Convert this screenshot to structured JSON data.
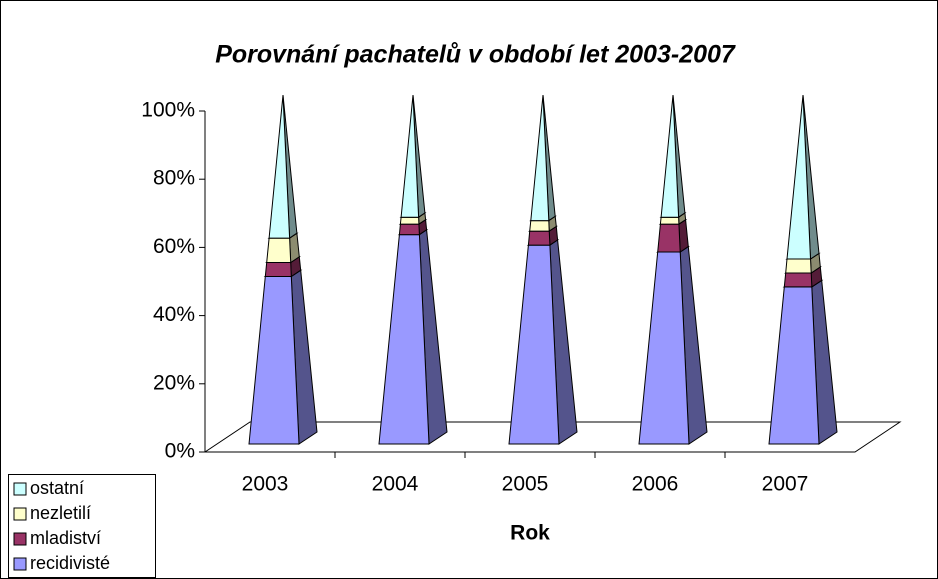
{
  "chart_data": {
    "type": "pyramid_stacked_100",
    "title": "Porovnání pachatelů v období let 2003-2007",
    "x_label": "Rok",
    "categories": [
      "2003",
      "2004",
      "2005",
      "2006",
      "2007"
    ],
    "series": [
      {
        "name": "recidivisté",
        "color": "#9999ff",
        "values": [
          48,
          60,
          57,
          55,
          45
        ]
      },
      {
        "name": "mladiství",
        "color": "#993366",
        "values": [
          4,
          3,
          4,
          8,
          4
        ]
      },
      {
        "name": "nezletilí",
        "color": "#ffffcc",
        "values": [
          7,
          2,
          3,
          2,
          4
        ]
      },
      {
        "name": "ostatní",
        "color": "#ccffff",
        "values": [
          41,
          35,
          36,
          35,
          47
        ]
      }
    ],
    "ylim": [
      0,
      100
    ],
    "yticks": [
      {
        "value": 0,
        "label": "0%"
      },
      {
        "value": 20,
        "label": "20%"
      },
      {
        "value": 40,
        "label": "40%"
      },
      {
        "value": 60,
        "label": "60%"
      },
      {
        "value": 80,
        "label": "80%"
      },
      {
        "value": 100,
        "label": "100%"
      }
    ],
    "legend": "bottom-left"
  }
}
